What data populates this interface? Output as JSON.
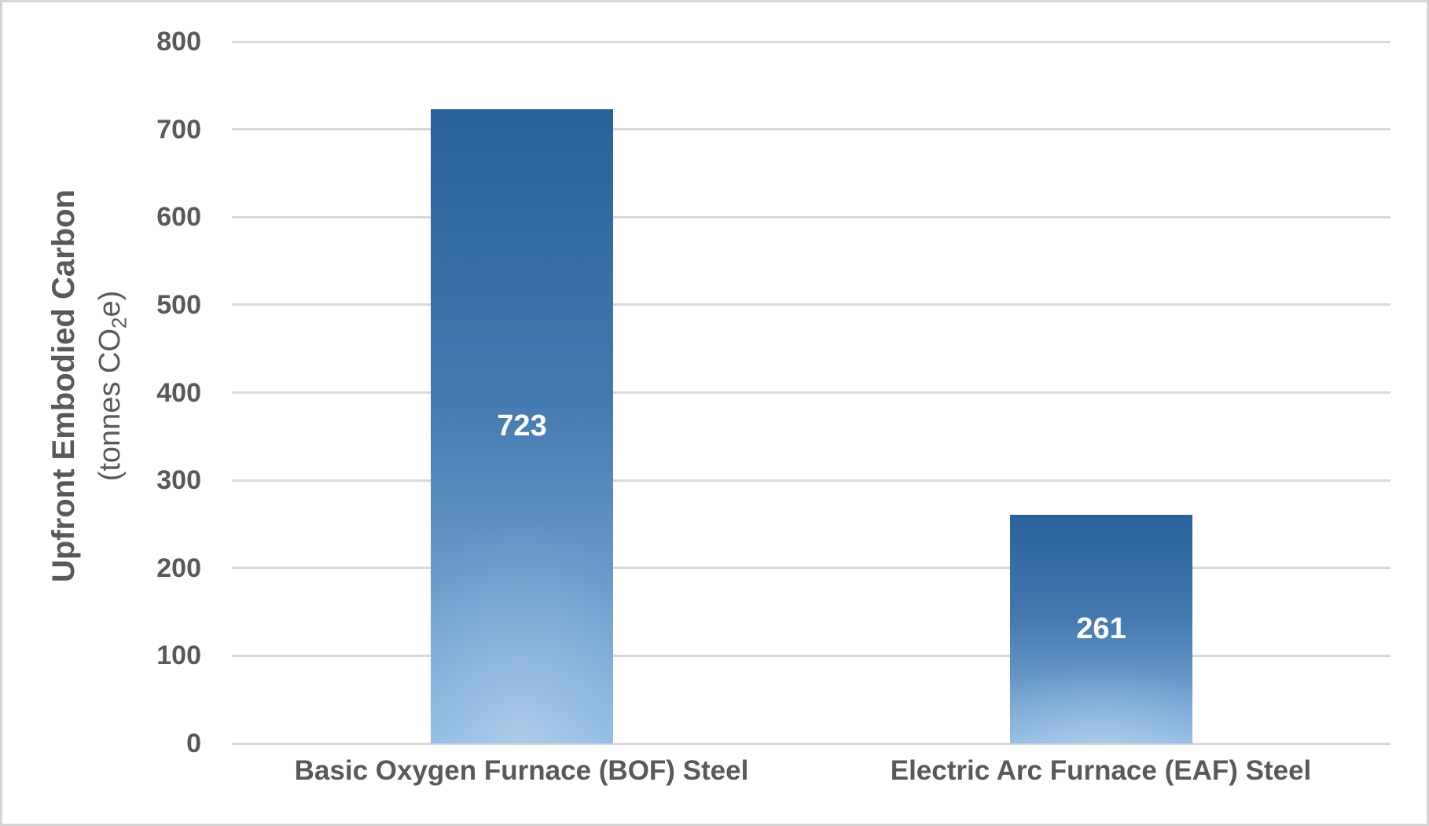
{
  "chart_data": {
    "type": "bar",
    "title": "",
    "categories": [
      "Basic Oxygen Furnace (BOF) Steel",
      "Electric Arc Furnace (EAF) Steel"
    ],
    "values": [
      723,
      261
    ],
    "value_labels": [
      "723",
      "261"
    ],
    "ylabel_line1": "Upfront Embodied Carbon",
    "ylabel_line2_prefix": "(tonnes CO",
    "ylabel_line2_subscript": "2",
    "ylabel_line2_suffix": "e)",
    "xlabel": "",
    "ylim": [
      0,
      800
    ],
    "yticks": [
      800,
      700,
      600,
      500,
      400,
      300,
      200,
      100,
      0
    ],
    "grid": true,
    "legend": "none",
    "value_label_position": "center-inside-bar",
    "colors": {
      "bar_gradient_top": "#2B619B",
      "bar_gradient_mid": "#4379AF",
      "bar_gradient_bottom": "#8AB7E2",
      "value_label": "#FFFFFF",
      "axis_text": "#595959",
      "gridline": "#D9D9D9",
      "border": "#D5D5D5",
      "background": "#FFFFFF"
    }
  }
}
